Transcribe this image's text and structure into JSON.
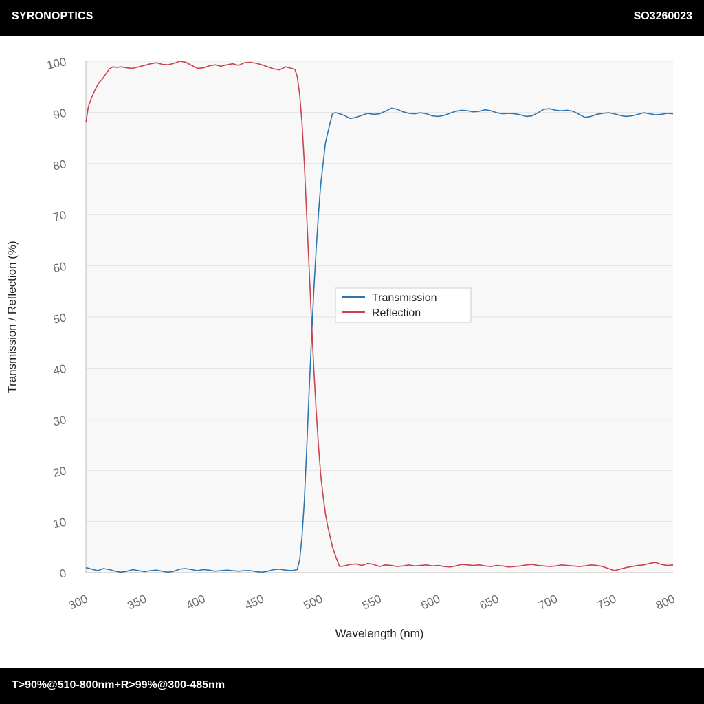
{
  "header": {
    "brand": "SYRONOPTICS",
    "part_number": "SO3260023"
  },
  "footer": {
    "spec": "T>90%@510-800nm+R>99%@300-485nm"
  },
  "colors": {
    "transmission": "#2e75b0",
    "reflection": "#c9434f",
    "plot_background": "#f8f8f8",
    "grid": "#e3e3e3"
  },
  "chart_data": {
    "type": "line",
    "title": "",
    "xlabel": "Wavelength (nm)",
    "ylabel": "Transmission / Reflection (%)",
    "xlim": [
      300,
      800
    ],
    "ylim": [
      0,
      100
    ],
    "xticks": [
      "300",
      "350",
      "400",
      "450",
      "500",
      "550",
      "600",
      "650",
      "700",
      "750",
      "800"
    ],
    "yticks": [
      "0",
      "10",
      "20",
      "30",
      "40",
      "50",
      "60",
      "70",
      "80",
      "90",
      "100"
    ],
    "grid": true,
    "legend": "center-right",
    "series": [
      {
        "name": "Transmission",
        "color": "#2e75b0",
        "x": [
          300,
          305,
          310,
          315,
          320,
          325,
          330,
          335,
          340,
          345,
          350,
          355,
          360,
          365,
          370,
          375,
          380,
          385,
          390,
          395,
          400,
          405,
          410,
          415,
          420,
          425,
          430,
          435,
          440,
          445,
          450,
          455,
          460,
          465,
          470,
          475,
          480,
          482,
          484,
          486,
          488,
          490,
          492,
          494,
          496,
          498,
          500,
          502,
          504,
          506,
          508,
          510,
          513,
          516,
          520,
          525,
          530,
          535,
          540,
          545,
          550,
          555,
          560,
          565,
          570,
          575,
          580,
          585,
          590,
          595,
          600,
          605,
          610,
          615,
          620,
          625,
          630,
          635,
          640,
          645,
          650,
          655,
          660,
          665,
          670,
          675,
          680,
          685,
          690,
          695,
          700,
          705,
          710,
          715,
          720,
          725,
          730,
          735,
          740,
          745,
          750,
          755,
          760,
          765,
          770,
          775,
          780,
          785,
          790,
          795,
          800
        ],
        "y": [
          1.0,
          0.7,
          0.4,
          0.8,
          0.6,
          0.3,
          0.1,
          0.3,
          0.6,
          0.4,
          0.2,
          0.4,
          0.5,
          0.3,
          0.1,
          0.3,
          0.7,
          0.8,
          0.6,
          0.4,
          0.6,
          0.5,
          0.3,
          0.4,
          0.5,
          0.4,
          0.3,
          0.4,
          0.4,
          0.2,
          0.1,
          0.3,
          0.6,
          0.7,
          0.5,
          0.4,
          0.6,
          2.5,
          7,
          14,
          24,
          35,
          45,
          55,
          63,
          70,
          76,
          80,
          84,
          86,
          88,
          89.8,
          89.9,
          89.7,
          89.4,
          88.8,
          89.0,
          89.4,
          89.8,
          89.6,
          89.7,
          90.2,
          90.8,
          90.6,
          90.1,
          89.8,
          89.7,
          89.9,
          89.7,
          89.3,
          89.2,
          89.4,
          89.8,
          90.2,
          90.4,
          90.3,
          90.1,
          90.2,
          90.5,
          90.3,
          89.9,
          89.7,
          89.8,
          89.7,
          89.5,
          89.2,
          89.3,
          89.9,
          90.6,
          90.7,
          90.4,
          90.3,
          90.4,
          90.2,
          89.6,
          89.0,
          89.2,
          89.6,
          89.8,
          89.9,
          89.7,
          89.4,
          89.2,
          89.3,
          89.6,
          89.9,
          89.7,
          89.5,
          89.6,
          89.8,
          89.7
        ]
      },
      {
        "name": "Reflection",
        "color": "#c9434f",
        "x": [
          300,
          302,
          305,
          308,
          311,
          314,
          317,
          320,
          323,
          326,
          330,
          335,
          340,
          345,
          350,
          355,
          360,
          365,
          370,
          375,
          380,
          385,
          390,
          395,
          400,
          405,
          410,
          415,
          420,
          425,
          430,
          435,
          440,
          445,
          450,
          455,
          460,
          465,
          470,
          475,
          478,
          480,
          482,
          484,
          486,
          488,
          490,
          492,
          494,
          496,
          498,
          500,
          502,
          504,
          506,
          508,
          510,
          513,
          516,
          520,
          525,
          530,
          535,
          540,
          545,
          550,
          555,
          560,
          565,
          570,
          575,
          580,
          585,
          590,
          595,
          600,
          605,
          610,
          615,
          620,
          625,
          630,
          635,
          640,
          645,
          650,
          655,
          660,
          665,
          670,
          675,
          680,
          685,
          690,
          695,
          700,
          705,
          710,
          715,
          720,
          725,
          730,
          735,
          740,
          745,
          750,
          755,
          760,
          765,
          770,
          775,
          780,
          785,
          790,
          795,
          800
        ],
        "y": [
          88.0,
          91.0,
          93.0,
          94.5,
          95.8,
          96.5,
          97.5,
          98.5,
          98.9,
          98.8,
          98.9,
          98.7,
          98.6,
          98.9,
          99.2,
          99.5,
          99.7,
          99.4,
          99.3,
          99.6,
          100.0,
          99.8,
          99.2,
          98.6,
          98.7,
          99.1,
          99.3,
          99.0,
          99.3,
          99.5,
          99.2,
          99.7,
          99.8,
          99.6,
          99.3,
          98.9,
          98.5,
          98.3,
          98.9,
          98.6,
          98.4,
          97.0,
          93.5,
          88,
          80,
          70,
          60,
          50,
          40,
          32,
          25,
          19,
          15,
          11.5,
          9,
          7,
          5,
          3,
          1.2,
          1.3,
          1.6,
          1.7,
          1.4,
          1.8,
          1.6,
          1.2,
          1.5,
          1.4,
          1.2,
          1.3,
          1.5,
          1.3,
          1.4,
          1.5,
          1.3,
          1.4,
          1.2,
          1.1,
          1.3,
          1.6,
          1.5,
          1.4,
          1.5,
          1.3,
          1.2,
          1.4,
          1.3,
          1.1,
          1.2,
          1.3,
          1.5,
          1.6,
          1.4,
          1.3,
          1.2,
          1.3,
          1.5,
          1.4,
          1.3,
          1.2,
          1.3,
          1.5,
          1.4,
          1.2,
          0.8,
          0.4,
          0.7,
          1.0,
          1.2,
          1.4,
          1.5,
          1.8,
          2.0,
          1.6,
          1.4,
          1.5
        ]
      }
    ]
  }
}
